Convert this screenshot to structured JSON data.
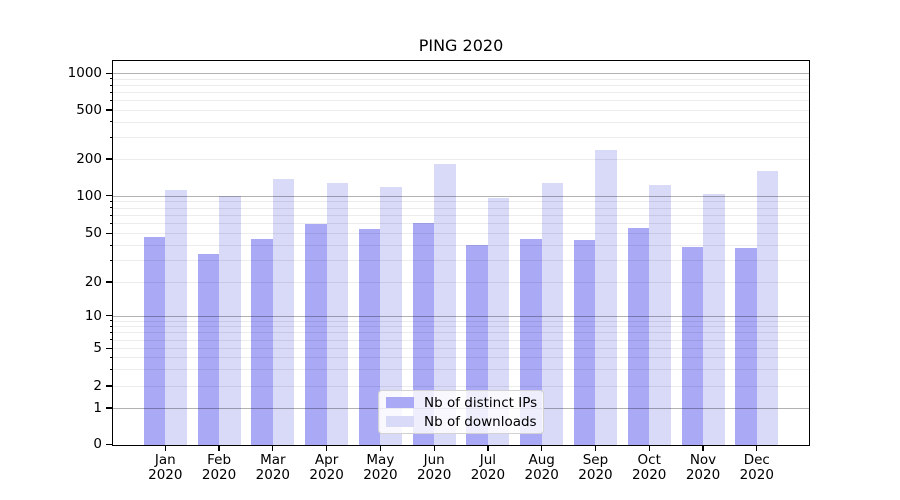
{
  "chart_data": {
    "type": "bar",
    "title": "PING 2020",
    "categories": [
      "Jan 2020",
      "Feb 2020",
      "Mar 2020",
      "Apr 2020",
      "May 2020",
      "Jun 2020",
      "Jul 2020",
      "Aug 2020",
      "Sep 2020",
      "Oct 2020",
      "Nov 2020",
      "Dec 2020"
    ],
    "series": [
      {
        "name": "Nb of distinct IPs",
        "color": "#a9a9f6",
        "values": [
          47,
          34,
          45,
          59,
          54,
          60,
          40,
          45,
          44,
          55,
          39,
          38
        ]
      },
      {
        "name": "Nb of downloads",
        "color": "#d9d9f8",
        "values": [
          112,
          100,
          137,
          128,
          117,
          182,
          95,
          126,
          238,
          122,
          103,
          160
        ]
      }
    ],
    "xlabel": "",
    "ylabel": "",
    "yscale": "log (symlog-style, axis includes 0)",
    "yticks": [
      0,
      1,
      2,
      5,
      10,
      20,
      50,
      100,
      200,
      500,
      1000
    ],
    "ylim": [
      0,
      1270
    ],
    "grid": "horizontal, minor + major (majors at 1, 10, 100, 1000)",
    "legend_position": "lower center"
  }
}
